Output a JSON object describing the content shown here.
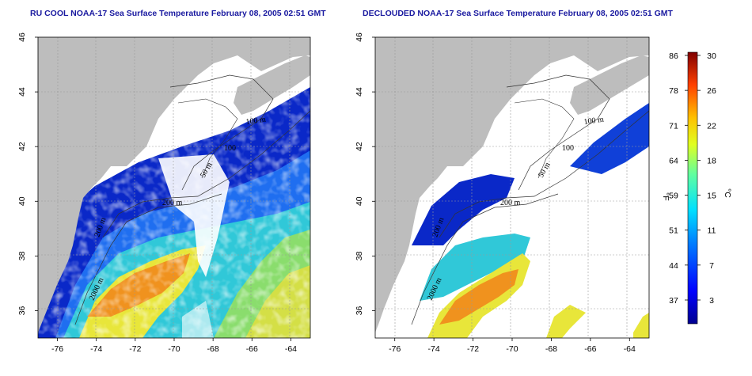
{
  "panels": [
    {
      "id": "left",
      "title": "RU COOL NOAA-17 Sea Surface Temperature February 08, 2005 02:51 GMT",
      "contour_labels": [
        "100 m",
        "100",
        "50 m",
        "200 m",
        "200 m",
        "2000 m"
      ]
    },
    {
      "id": "right",
      "title": "DECLOUDED NOAA-17 Sea Surface Temperature February 08, 2005 02:51 GMT",
      "contour_labels": [
        "100 m",
        "100",
        "50 m",
        "200 m",
        "200 m",
        "2000 m"
      ]
    }
  ],
  "axes": {
    "longitude_ticks": [
      "-76",
      "-74",
      "-72",
      "-70",
      "-68",
      "-66",
      "-64"
    ],
    "latitude_ticks": [
      "46",
      "44",
      "42",
      "40",
      "38",
      "36"
    ]
  },
  "colorbar": {
    "fahrenheit_label": "°F",
    "celsius_label": "°C",
    "fahrenheit_ticks": [
      "86",
      "78",
      "71",
      "64",
      "59",
      "51",
      "44",
      "37"
    ],
    "celsius_ticks": [
      "30",
      "26",
      "22",
      "18",
      "15",
      "11",
      "7",
      "3"
    ]
  },
  "colors": {
    "land": "#bdbdbd",
    "cloud": "#ffffff",
    "cold": "#0a1fb8",
    "cool": "#1f7bf0",
    "mild": "#2fd0d0",
    "warm": "#f5e02a",
    "hot": "#f09020",
    "title": "#1a1aa0"
  }
}
